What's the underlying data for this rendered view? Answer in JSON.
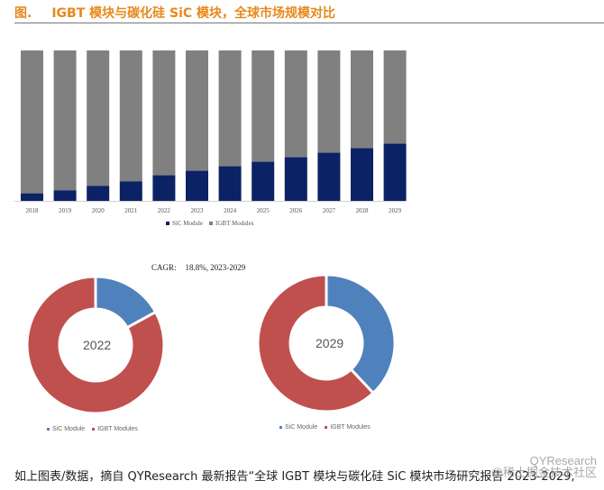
{
  "header": {
    "fig_label": "图.",
    "title": "IGBT 模块与碳化硅 SiC 模块，全球市场规模对比"
  },
  "chart_data": [
    {
      "type": "bar",
      "stacked": true,
      "normalized": true,
      "categories": [
        "2018",
        "2019",
        "2020",
        "2021",
        "2022",
        "2023",
        "2024",
        "2025",
        "2026",
        "2027",
        "2028",
        "2029"
      ],
      "series": [
        {
          "name": "SiC Module",
          "color": "#0b2364",
          "values": [
            5,
            7,
            10,
            13,
            17,
            20,
            23,
            26,
            29,
            32,
            35,
            38
          ]
        },
        {
          "name": "IGBT Modules",
          "color": "#808080",
          "values": [
            95,
            93,
            90,
            87,
            83,
            80,
            77,
            74,
            71,
            68,
            65,
            62
          ]
        }
      ],
      "ylim": [
        0,
        100
      ],
      "grid": false,
      "legend_position": "bottom",
      "title": "",
      "xlabel": "",
      "ylabel": ""
    },
    {
      "type": "pie",
      "donut": true,
      "center_label": "2022",
      "categories": [
        "SiC Module",
        "IGBT Modules"
      ],
      "values": [
        17,
        83
      ],
      "colors": [
        "#4f81bd",
        "#c0504d"
      ],
      "legend_position": "bottom"
    },
    {
      "type": "pie",
      "donut": true,
      "center_label": "2029",
      "categories": [
        "SiC Module",
        "IGBT Modules"
      ],
      "values": [
        38,
        62
      ],
      "colors": [
        "#4f81bd",
        "#c0504d"
      ],
      "legend_position": "bottom"
    }
  ],
  "bar_legend": {
    "sic": "SiC Module",
    "igbt": "IGBT Modules"
  },
  "cagr": {
    "label": "CAGR:",
    "value": "18.8%, 2023-2029"
  },
  "pie_legend": {
    "sic": "SiC Module",
    "igbt": "IGBT Modules"
  },
  "footer": {
    "text": "如上图表/数据，摘自 QYResearch 最新报告“全球 IGBT 模块与碳化硅 SiC 模块市场研究报告 2023-2029,"
  },
  "watermark": {
    "line1": "QYResearch",
    "line2": "@稀土掘金技术社区"
  }
}
